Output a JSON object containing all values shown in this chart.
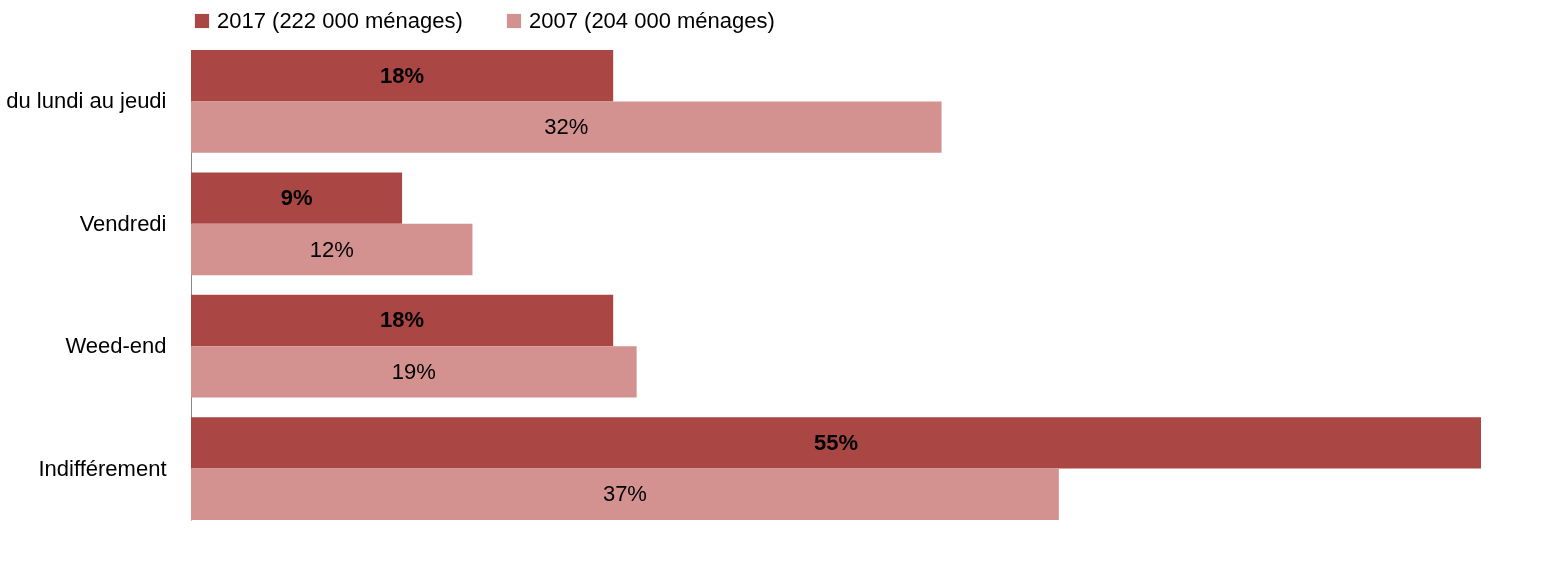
{
  "chart_data": {
    "type": "bar",
    "orientation": "horizontal",
    "legend": "top",
    "data_labels": false,
    "categories": [
      "du lundi au jeudi",
      "Vendredi",
      "Weed-end",
      "Indifférement"
    ],
    "series": [
      {
        "name": "2017 (222 000 ménages)",
        "color": "#aa4644",
        "values": [
          18,
          9,
          18,
          55
        ],
        "value_labels": [
          "18%",
          "9%",
          "18%",
          "55%"
        ]
      },
      {
        "name": "2007 (204 000 ménages)",
        "color": "#d39190",
        "values": [
          32,
          12,
          19,
          37
        ],
        "value_labels": [
          "32%",
          "12%",
          "19%",
          "37%"
        ]
      }
    ]
  }
}
